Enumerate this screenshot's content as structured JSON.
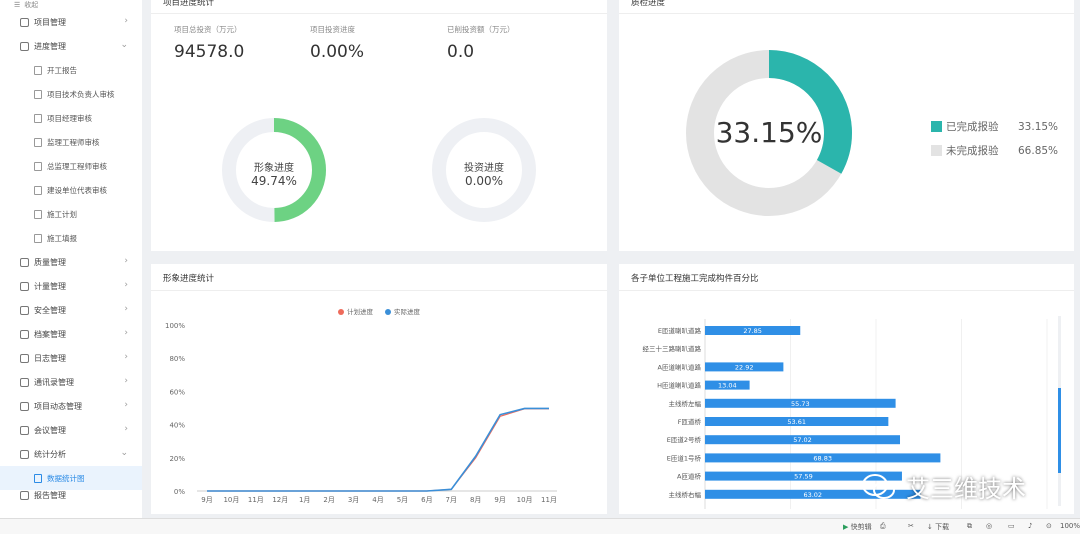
{
  "sidebar": {
    "collapse": "收起",
    "items": [
      {
        "label": "项目管理",
        "arrow": "›"
      },
      {
        "label": "进度管理",
        "arrow": "⌄"
      }
    ],
    "sub_progress": [
      "开工报告",
      "项目技术负责人审核",
      "项目经理审核",
      "监理工程师审核",
      "总监理工程师审核",
      "建设单位代表审核",
      "施工计划",
      "施工填报"
    ],
    "items_after": [
      "质量管理",
      "计量管理",
      "安全管理",
      "档案管理",
      "日志管理",
      "通讯录管理",
      "项目动态管理",
      "会议管理",
      "统计分析"
    ],
    "sub_stats": [
      "数据统计图"
    ],
    "last_item": "报告管理"
  },
  "panel1": {
    "title": "项目进度统计",
    "stats": [
      {
        "label": "项目总投资（万元）",
        "value": "94578.0"
      },
      {
        "label": "项目投资进度",
        "value": "0.00%"
      },
      {
        "label": "已削投资额（万元）",
        "value": "0.0"
      }
    ],
    "ring1": {
      "label": "形象进度",
      "value": "49.74%",
      "fraction": 0.4974,
      "color": "#6dd283"
    },
    "ring2": {
      "label": "投资进度",
      "value": "0.00%",
      "fraction": 0.0,
      "color": "#6dd283"
    }
  },
  "panel2": {
    "title": "质检进度",
    "center": "33.15%",
    "fraction": 0.3315,
    "colors": {
      "done": "#2bb5ac",
      "todo": "#e3e3e3"
    },
    "legend": [
      {
        "label": "已完成报验",
        "value": "33.15%",
        "color": "#2bb5ac"
      },
      {
        "label": "未完成报验",
        "value": "66.85%",
        "color": "#e3e3e3"
      }
    ]
  },
  "chart_data": [
    {
      "type": "line",
      "title": "形象进度统计",
      "categories": [
        "9月",
        "10月",
        "11月",
        "12月",
        "1月",
        "2月",
        "3月",
        "4月",
        "5月",
        "6月",
        "7月",
        "8月",
        "9月",
        "10月",
        "11月"
      ],
      "series": [
        {
          "name": "计划进度",
          "color": "#ee6b5b",
          "values": [
            0,
            0,
            0,
            0,
            0,
            0,
            0,
            0,
            0,
            0,
            1,
            20,
            45,
            49.5,
            49.5
          ]
        },
        {
          "name": "实际进度",
          "color": "#3a8fd8",
          "values": [
            0,
            0,
            0,
            0,
            0,
            0,
            0,
            0,
            0,
            0,
            1,
            21,
            46,
            49.74,
            49.74
          ]
        }
      ],
      "yticks": [
        "0%",
        "20%",
        "40%",
        "60%",
        "80%",
        "100%"
      ],
      "ylim": [
        0,
        100
      ]
    },
    {
      "type": "bar",
      "title": "各子单位工程施工完成构件百分比",
      "categories": [
        "E匝道喇叭道路",
        "经三十三路喇叭道路",
        "A匝道喇叭道路",
        "H匝道喇叭道路",
        "主线桥左幅",
        "F匝道桥",
        "E匝道2号桥",
        "E匝道1号桥",
        "A匝道桥",
        "主线桥右幅"
      ],
      "values": [
        27.85,
        null,
        22.92,
        13.04,
        55.73,
        53.61,
        57.02,
        68.83,
        57.59,
        63.02
      ],
      "labels": [
        "27.85",
        "",
        "22.92",
        "13.04",
        "55.73",
        "53.61",
        "57.02",
        "68.83",
        "57.59",
        "63.02"
      ],
      "color": "#2f8fe6",
      "xlim": [
        0,
        100
      ]
    }
  ],
  "status": {
    "items": [
      "快剪辑",
      "下载",
      "100%"
    ]
  },
  "watermark": "艾三维技术"
}
